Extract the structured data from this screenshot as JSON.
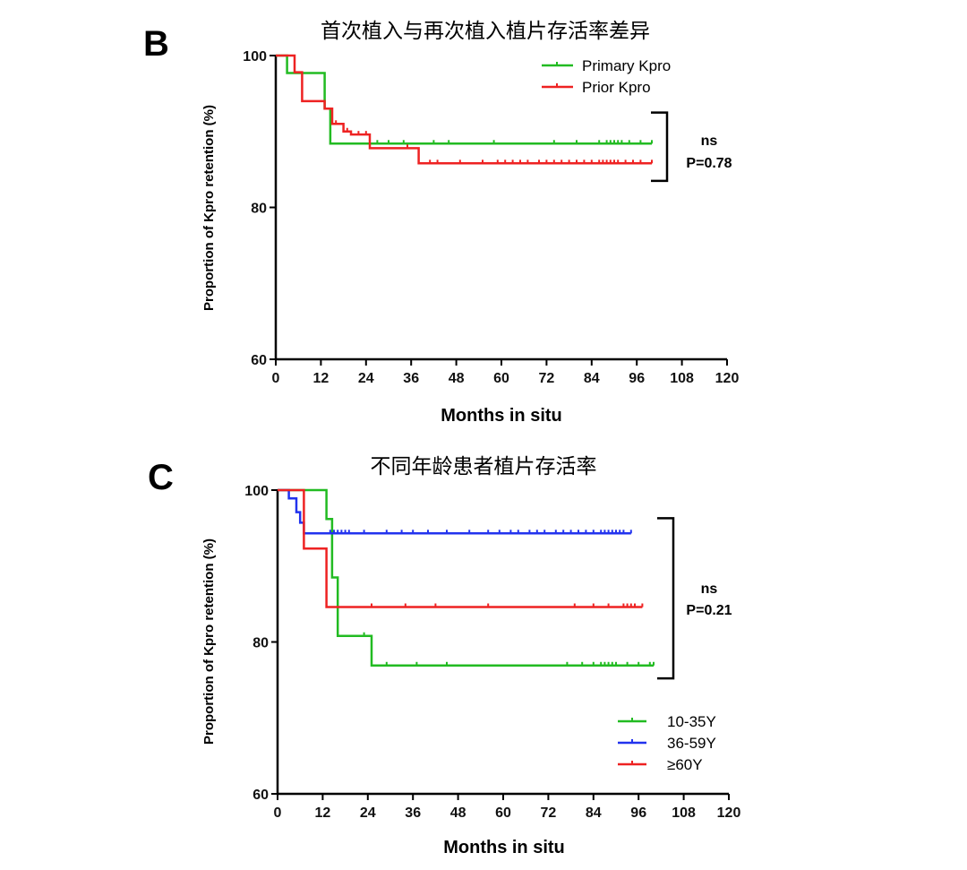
{
  "chart_data": [
    {
      "type": "line",
      "panel": "B",
      "title": "首次植入与再次植入植片存活率差异",
      "xlabel": "Months in situ",
      "ylabel": "Proportion of Kpro retention (%)",
      "xlim": [
        0,
        120
      ],
      "ylim": [
        60,
        100
      ],
      "xticks": [
        0,
        12,
        24,
        36,
        48,
        60,
        72,
        84,
        96,
        108,
        120
      ],
      "yticks": [
        60,
        80,
        100
      ],
      "legend_position": "top-right",
      "annotation": {
        "line1": "ns",
        "line2": "P=0.78",
        "bracket_y": [
          92.5,
          83.5
        ]
      },
      "series": [
        {
          "name": "Primary Kpro",
          "color": "#22bb22",
          "steps": [
            [
              0,
              100
            ],
            [
              3,
              100
            ],
            [
              3,
              97.7
            ],
            [
              13,
              97.7
            ],
            [
              13,
              93
            ],
            [
              14.5,
              93
            ],
            [
              14.5,
              88.4
            ],
            [
              100,
              88.4
            ]
          ],
          "censors": [
            [
              27,
              88.4
            ],
            [
              30,
              88.4
            ],
            [
              34,
              88.4
            ],
            [
              42,
              88.4
            ],
            [
              46,
              88.4
            ],
            [
              58,
              88.4
            ],
            [
              74,
              88.4
            ],
            [
              80,
              88.4
            ],
            [
              86,
              88.4
            ],
            [
              88,
              88.4
            ],
            [
              89,
              88.4
            ],
            [
              90,
              88.4
            ],
            [
              91,
              88.4
            ],
            [
              92,
              88.4
            ],
            [
              94,
              88.4
            ],
            [
              97,
              88.4
            ],
            [
              100,
              88.4
            ]
          ]
        },
        {
          "name": "Prior Kpro",
          "color": "#ee2222",
          "steps": [
            [
              0,
              100
            ],
            [
              5,
              100
            ],
            [
              5,
              97.8
            ],
            [
              7,
              97.8
            ],
            [
              7,
              94
            ],
            [
              13,
              94
            ],
            [
              13,
              93
            ],
            [
              15,
              93
            ],
            [
              15,
              91
            ],
            [
              18,
              91
            ],
            [
              18,
              90
            ],
            [
              20,
              90
            ],
            [
              20,
              89.6
            ],
            [
              25,
              89.6
            ],
            [
              25,
              87.8
            ],
            [
              38,
              87.8
            ],
            [
              38,
              85.8
            ],
            [
              100,
              85.8
            ]
          ],
          "censors": [
            [
              16,
              91
            ],
            [
              19,
              90
            ],
            [
              22,
              89.6
            ],
            [
              24,
              89.6
            ],
            [
              35,
              87.8
            ],
            [
              41,
              85.8
            ],
            [
              43,
              85.8
            ],
            [
              49,
              85.8
            ],
            [
              55,
              85.8
            ],
            [
              59,
              85.8
            ],
            [
              61,
              85.8
            ],
            [
              63,
              85.8
            ],
            [
              65,
              85.8
            ],
            [
              67,
              85.8
            ],
            [
              70,
              85.8
            ],
            [
              72,
              85.8
            ],
            [
              74,
              85.8
            ],
            [
              76,
              85.8
            ],
            [
              78,
              85.8
            ],
            [
              80,
              85.8
            ],
            [
              82,
              85.8
            ],
            [
              84,
              85.8
            ],
            [
              86,
              85.8
            ],
            [
              87,
              85.8
            ],
            [
              88,
              85.8
            ],
            [
              89,
              85.8
            ],
            [
              90,
              85.8
            ],
            [
              91,
              85.8
            ],
            [
              93,
              85.8
            ],
            [
              95,
              85.8
            ],
            [
              97,
              85.8
            ],
            [
              100,
              85.8
            ]
          ]
        }
      ]
    },
    {
      "type": "line",
      "panel": "C",
      "title": "不同年龄患者植片存活率",
      "xlabel": "Months in situ",
      "ylabel": "Proportion of Kpro retention (%)",
      "xlim": [
        0,
        120
      ],
      "ylim": [
        60,
        100
      ],
      "xticks": [
        0,
        12,
        24,
        36,
        48,
        60,
        72,
        84,
        96,
        108,
        120
      ],
      "yticks": [
        60,
        80,
        100
      ],
      "legend_position": "bottom-right",
      "annotation": {
        "line1": "ns",
        "line2": "P=0.21",
        "bracket_y": [
          96.3,
          75.2
        ]
      },
      "series": [
        {
          "name": "10-35Y",
          "color": "#22bb22",
          "steps": [
            [
              0,
              100
            ],
            [
              13,
              100
            ],
            [
              13,
              96.2
            ],
            [
              14.5,
              96.2
            ],
            [
              14.5,
              88.5
            ],
            [
              16,
              88.5
            ],
            [
              16,
              80.8
            ],
            [
              25,
              80.8
            ],
            [
              25,
              76.9
            ],
            [
              100,
              76.9
            ]
          ],
          "censors": [
            [
              23,
              80.8
            ],
            [
              29,
              76.9
            ],
            [
              37,
              76.9
            ],
            [
              45,
              76.9
            ],
            [
              77,
              76.9
            ],
            [
              81,
              76.9
            ],
            [
              84,
              76.9
            ],
            [
              86,
              76.9
            ],
            [
              87,
              76.9
            ],
            [
              88,
              76.9
            ],
            [
              89,
              76.9
            ],
            [
              90,
              76.9
            ],
            [
              93,
              76.9
            ],
            [
              96,
              76.9
            ],
            [
              99,
              76.9
            ],
            [
              100,
              76.9
            ]
          ]
        },
        {
          "name": "36-59Y",
          "color": "#2233ee",
          "steps": [
            [
              0,
              100
            ],
            [
              3,
              100
            ],
            [
              3,
              98.9
            ],
            [
              5,
              98.9
            ],
            [
              5,
              97.1
            ],
            [
              6,
              97.1
            ],
            [
              6,
              95.7
            ],
            [
              7,
              95.7
            ],
            [
              7,
              94.3
            ],
            [
              94,
              94.3
            ]
          ],
          "censors": [
            [
              14,
              94.3
            ],
            [
              15,
              94.3
            ],
            [
              16,
              94.3
            ],
            [
              17,
              94.3
            ],
            [
              18,
              94.3
            ],
            [
              19,
              94.3
            ],
            [
              23,
              94.3
            ],
            [
              29,
              94.3
            ],
            [
              33,
              94.3
            ],
            [
              36,
              94.3
            ],
            [
              40,
              94.3
            ],
            [
              45,
              94.3
            ],
            [
              51,
              94.3
            ],
            [
              56,
              94.3
            ],
            [
              59,
              94.3
            ],
            [
              62,
              94.3
            ],
            [
              64,
              94.3
            ],
            [
              67,
              94.3
            ],
            [
              69,
              94.3
            ],
            [
              71,
              94.3
            ],
            [
              74,
              94.3
            ],
            [
              76,
              94.3
            ],
            [
              78,
              94.3
            ],
            [
              80,
              94.3
            ],
            [
              82,
              94.3
            ],
            [
              84,
              94.3
            ],
            [
              86,
              94.3
            ],
            [
              87,
              94.3
            ],
            [
              88,
              94.3
            ],
            [
              89,
              94.3
            ],
            [
              90,
              94.3
            ],
            [
              91,
              94.3
            ],
            [
              92,
              94.3
            ],
            [
              94,
              94.3
            ]
          ]
        },
        {
          "name": "≥60Y",
          "color": "#ee2222",
          "steps": [
            [
              0,
              100
            ],
            [
              7,
              100
            ],
            [
              7,
              92.3
            ],
            [
              13,
              92.3
            ],
            [
              13,
              84.6
            ],
            [
              97,
              84.6
            ]
          ],
          "censors": [
            [
              25,
              84.6
            ],
            [
              34,
              84.6
            ],
            [
              42,
              84.6
            ],
            [
              56,
              84.6
            ],
            [
              79,
              84.6
            ],
            [
              84,
              84.6
            ],
            [
              88,
              84.6
            ],
            [
              92,
              84.6
            ],
            [
              93,
              84.6
            ],
            [
              94,
              84.6
            ],
            [
              95,
              84.6
            ],
            [
              97,
              84.6
            ]
          ]
        }
      ]
    }
  ]
}
